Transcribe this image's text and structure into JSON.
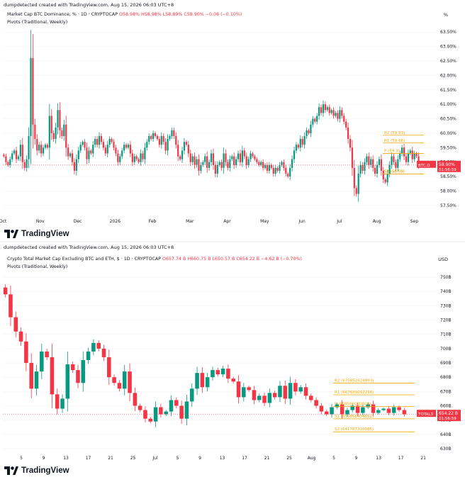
{
  "panels": [
    {
      "credit": "dumpdetected created with TradingView.com, Aug 15, 2026 06:03 UTC+8",
      "symbol": "Market Cap BTC Dominance, %  · 1D · CRYPTOCAP",
      "ohlc": {
        "o": "O58.98%",
        "h": "H58.98%",
        "l": "L58.89%",
        "c": "C58.90%",
        "chg": "−0.06 (−0.10%)"
      },
      "indicator": "Pivots (Traditional, Weekly)",
      "unit": "%",
      "price_tag": {
        "ticker": "BTC.D",
        "value": "58.90%",
        "timer": "01:56:59"
      },
      "logo": "TradingView"
    },
    {
      "credit": "dumpdetected created with TradingView.com, Aug 15, 2026 06:03 UTC+8",
      "symbol": "Crypto Total Market Cap Excluding BTC and ETH, $  · 1D · CRYPTOCAP",
      "ohlc": {
        "o": "O657.74 B",
        "h": "H660.75 B",
        "l": "L650.57 B",
        "c": "C654.22 B",
        "chg": "−4.62 B (−0.70%)"
      },
      "indicator": "Pivots (Traditional, Weekly)",
      "unit": "USD",
      "price_tag": {
        "ticker": "TOTAL3",
        "value": "654.22 B",
        "timer": "01:56:59"
      },
      "logo": "TradingView"
    }
  ],
  "chart_data": [
    {
      "type": "candlestick",
      "title": "Market Cap BTC Dominance, %",
      "ylabel": "%",
      "ylim": [
        57.3,
        63.8
      ],
      "y_ticks": [
        "57.50%",
        "58.00%",
        "58.50%",
        "59.00%",
        "59.50%",
        "60.00%",
        "60.50%",
        "61.00%",
        "61.50%",
        "62.00%",
        "62.50%",
        "63.00%",
        "63.50%"
      ],
      "x_ticks": [
        "Oct",
        "Nov",
        "Dec",
        "2026",
        "Feb",
        "Mar",
        "Apr",
        "May",
        "Jun",
        "Jul",
        "Aug",
        "Sep"
      ],
      "closes": [
        59.2,
        59.0,
        58.9,
        59.1,
        59.3,
        59.4,
        59.1,
        59.2,
        59.6,
        59.0,
        58.8,
        59.1,
        59.9,
        62.6,
        60.3,
        59.8,
        59.4,
        59.6,
        59.3,
        59.5,
        59.6,
        59.5,
        60.6,
        60.0,
        59.8,
        60.2,
        60.8,
        60.1,
        59.9,
        60.3,
        59.5,
        59.2,
        59.3,
        59.0,
        58.7,
        59.1,
        59.4,
        59.6,
        59.7,
        59.5,
        59.1,
        59.4,
        59.3,
        59.6,
        59.8,
        59.6,
        59.9,
        59.7,
        59.5,
        59.3,
        59.6,
        59.8,
        59.7,
        59.5,
        59.3,
        59.0,
        59.2,
        59.4,
        59.6,
        59.5,
        59.6,
        59.3,
        59.0,
        59.2,
        59.1,
        59.0,
        59.3,
        59.1,
        59.5,
        59.7,
        59.9,
        59.8,
        60.0,
        59.9,
        59.8,
        59.6,
        59.9,
        59.7,
        59.4,
        59.8,
        59.9,
        60.1,
        59.9,
        59.6,
        59.2,
        59.1,
        59.4,
        59.7,
        59.6,
        59.3,
        59.0,
        59.2,
        58.9,
        59.1,
        58.7,
        58.9,
        59.0,
        59.2,
        58.8,
        59.0,
        59.3,
        58.9,
        58.6,
        58.9,
        59.0,
        58.8,
        59.3,
        59.0,
        58.8,
        59.1,
        59.2,
        58.9,
        59.1,
        59.3,
        59.0,
        59.4,
        59.2,
        58.9,
        59.1,
        59.3,
        59.2,
        59.1,
        59.0,
        58.9,
        59.0,
        58.8,
        58.9,
        58.7,
        58.9,
        58.8,
        58.6,
        58.8,
        58.7,
        58.9,
        59.0,
        58.8,
        58.6,
        58.5,
        58.8,
        59.1,
        59.4,
        59.6,
        59.5,
        59.8,
        59.6,
        59.9,
        60.1,
        60.0,
        60.3,
        60.5,
        60.4,
        60.6,
        60.9,
        60.7,
        61.0,
        60.8,
        60.9,
        60.7,
        60.8,
        60.6,
        60.7,
        60.5,
        60.8,
        60.6,
        60.4,
        60.2,
        59.8,
        59.5,
        58.8,
        58.1,
        57.9,
        58.6,
        58.9,
        58.7,
        59.0,
        59.2,
        58.9,
        59.1,
        58.8,
        58.6,
        58.9,
        59.1,
        58.7,
        58.4,
        58.3,
        58.6,
        58.9,
        59.2,
        59.0,
        58.8,
        59.1,
        59.3,
        59.5,
        59.2,
        59.0,
        59.3,
        59.4,
        59.1,
        59.3,
        59.2,
        58.9
      ],
      "pivots": [
        {
          "label": "R2 (59.93)",
          "value": 59.93
        },
        {
          "label": "R1 (59.66)",
          "value": 59.66
        },
        {
          "label": "P (59.3)",
          "value": 59.3
        },
        {
          "label": "S1 (58.59)",
          "value": 58.59
        },
        {
          "label": "S2 (58.59)",
          "value": 58.59
        }
      ],
      "last": 58.9
    },
    {
      "type": "candlestick",
      "title": "Crypto Total Market Cap Excluding BTC and ETH, $",
      "ylabel": "USD",
      "ylim": [
        627,
        756
      ],
      "y_ticks": [
        "630B",
        "640B",
        "650B",
        "660B",
        "670B",
        "680B",
        "690B",
        "700B",
        "710B",
        "720B",
        "730B",
        "740B",
        "750B"
      ],
      "x_ticks": [
        "5",
        "9",
        "13",
        "17",
        "21",
        "25",
        "Jul",
        "5",
        "9",
        "13",
        "17",
        "21",
        "25",
        "Aug",
        "5",
        "9",
        "13",
        "17",
        "21"
      ],
      "closes": [
        738,
        722,
        712,
        705,
        690,
        672,
        684,
        698,
        694,
        668,
        658,
        665,
        689,
        685,
        676,
        692,
        698,
        704,
        700,
        694,
        680,
        676,
        672,
        684,
        669,
        660,
        657,
        651,
        649,
        659,
        654,
        656,
        664,
        660,
        651,
        663,
        672,
        683,
        673,
        680,
        685,
        682,
        686,
        679,
        677,
        666,
        673,
        671,
        664,
        667,
        662,
        669,
        666,
        674,
        665,
        676,
        670,
        673,
        667,
        664,
        660,
        656,
        654,
        659,
        661,
        654,
        657,
        660,
        655,
        659,
        661,
        655,
        657,
        658,
        655,
        659,
        657,
        654
      ],
      "pivots": [
        {
          "label": "R2 (675852624893)",
          "value": 675.85
        },
        {
          "label": "R1 (667689092256)",
          "value": 667.69
        },
        {
          "label": "P (659500000000)",
          "value": 659.5
        },
        {
          "label": "S1 (650856434852)",
          "value": 650.86
        },
        {
          "label": "S2 (641787310085)",
          "value": 641.79
        }
      ],
      "last": 654.22
    }
  ],
  "colors": {
    "up": "#089981",
    "down": "#f23645",
    "pivot": "#f7a600",
    "grid": "#f0f3fa",
    "text": "#131722"
  }
}
